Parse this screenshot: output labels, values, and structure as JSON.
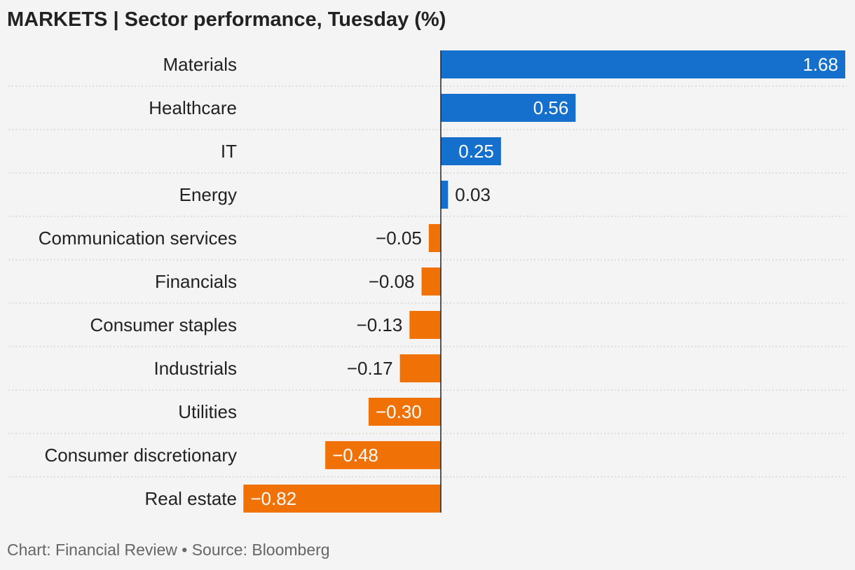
{
  "chart_data": {
    "type": "bar",
    "orientation": "horizontal",
    "title": "MARKETS | Sector performance, Tuesday (%)",
    "footer": "Chart: Financial Review • Source: Bloomberg",
    "categories": [
      "Materials",
      "Healthcare",
      "IT",
      "Energy",
      "Communication services",
      "Financials",
      "Consumer staples",
      "Industrials",
      "Utilities",
      "Consumer discretionary",
      "Real estate"
    ],
    "values": [
      1.68,
      0.56,
      0.25,
      0.03,
      -0.05,
      -0.08,
      -0.13,
      -0.17,
      -0.3,
      -0.48,
      -0.82
    ],
    "value_labels": [
      "1.68",
      "0.56",
      "0.25",
      "0.03",
      "−0.05",
      "−0.08",
      "−0.13",
      "−0.17",
      "−0.30",
      "−0.48",
      "−0.82"
    ],
    "xlim": [
      -0.82,
      1.68
    ],
    "gridlines": "dotted row separators",
    "colors": {
      "positive": "#1470cc",
      "negative": "#f07206"
    }
  }
}
